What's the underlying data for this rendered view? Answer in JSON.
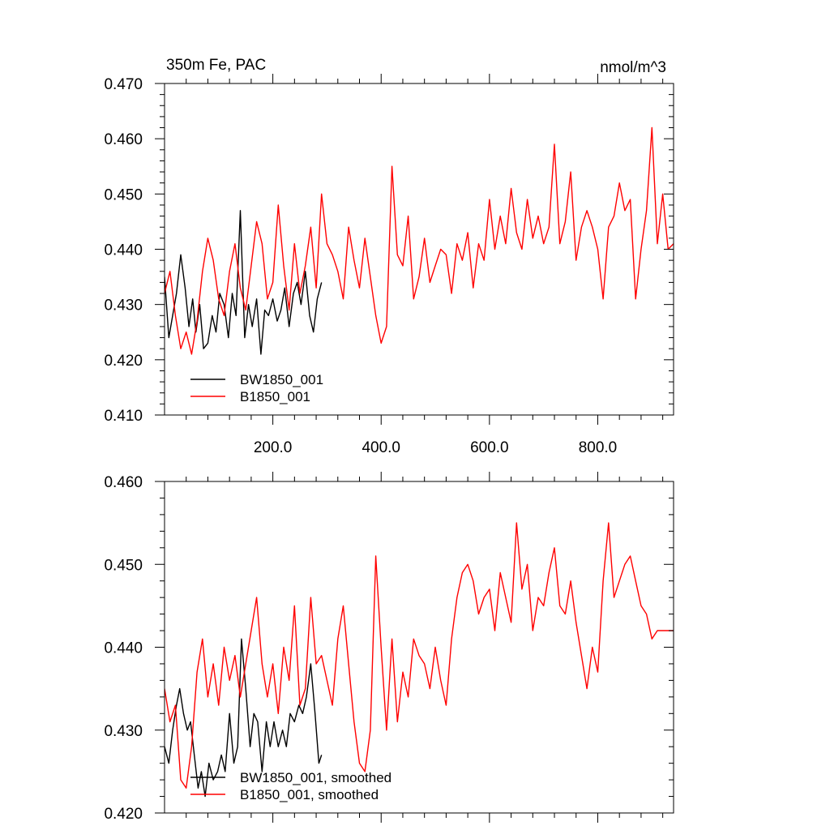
{
  "colors": {
    "bw": "#000000",
    "b": "#ff0000",
    "axis": "#000000"
  },
  "chart_data": [
    {
      "type": "line",
      "title_left": "350m Fe, PAC",
      "title_right": "nmol/m^3",
      "xlim": [
        0,
        940
      ],
      "ylim": [
        0.41,
        0.47
      ],
      "y_ticks": [
        0.41,
        0.42,
        0.43,
        0.44,
        0.45,
        0.46,
        0.47
      ],
      "y_tick_labels": [
        "0.410",
        "0.420",
        "0.430",
        "0.440",
        "0.450",
        "0.460",
        "0.470"
      ],
      "x_ticks": [
        200,
        400,
        600,
        800
      ],
      "x_tick_labels": [
        "200.0",
        "400.0",
        "600.0",
        "800.0"
      ],
      "legend": [
        "BW1850_001",
        "B1850_001"
      ],
      "legend_placement": "bottom-left",
      "series": [
        {
          "name": "BW1850_001",
          "x": [
            0,
            8,
            15,
            22,
            30,
            38,
            45,
            52,
            58,
            65,
            72,
            80,
            88,
            95,
            102,
            110,
            118,
            125,
            132,
            140,
            148,
            155,
            162,
            170,
            178,
            185,
            192,
            200,
            208,
            215,
            222,
            230,
            238,
            245,
            252,
            260,
            268,
            275,
            282,
            290
          ],
          "y": [
            0.435,
            0.424,
            0.428,
            0.432,
            0.439,
            0.433,
            0.426,
            0.431,
            0.425,
            0.43,
            0.422,
            0.423,
            0.428,
            0.425,
            0.432,
            0.43,
            0.424,
            0.432,
            0.428,
            0.447,
            0.424,
            0.43,
            0.426,
            0.431,
            0.421,
            0.429,
            0.428,
            0.431,
            0.427,
            0.429,
            0.433,
            0.426,
            0.432,
            0.434,
            0.43,
            0.436,
            0.428,
            0.425,
            0.431,
            0.434
          ]
        },
        {
          "name": "B1850_001",
          "x": [
            0,
            10,
            20,
            30,
            40,
            50,
            60,
            70,
            80,
            90,
            100,
            110,
            120,
            130,
            140,
            150,
            160,
            170,
            180,
            190,
            200,
            210,
            220,
            230,
            240,
            250,
            260,
            270,
            280,
            290,
            300,
            310,
            320,
            330,
            340,
            350,
            360,
            370,
            380,
            390,
            400,
            410,
            420,
            430,
            440,
            450,
            460,
            470,
            480,
            490,
            500,
            510,
            520,
            530,
            540,
            550,
            560,
            570,
            580,
            590,
            600,
            610,
            620,
            630,
            640,
            650,
            660,
            670,
            680,
            690,
            700,
            710,
            720,
            730,
            740,
            750,
            760,
            770,
            780,
            790,
            800,
            810,
            820,
            830,
            840,
            850,
            860,
            870,
            880,
            890,
            900,
            910,
            920,
            930,
            940
          ],
          "y": [
            0.432,
            0.436,
            0.428,
            0.422,
            0.425,
            0.421,
            0.427,
            0.436,
            0.442,
            0.438,
            0.431,
            0.428,
            0.436,
            0.441,
            0.433,
            0.429,
            0.437,
            0.445,
            0.441,
            0.431,
            0.434,
            0.448,
            0.437,
            0.429,
            0.441,
            0.432,
            0.437,
            0.444,
            0.433,
            0.45,
            0.441,
            0.439,
            0.436,
            0.431,
            0.444,
            0.438,
            0.433,
            0.442,
            0.435,
            0.428,
            0.423,
            0.426,
            0.455,
            0.439,
            0.437,
            0.446,
            0.431,
            0.435,
            0.442,
            0.434,
            0.437,
            0.44,
            0.439,
            0.432,
            0.441,
            0.438,
            0.443,
            0.433,
            0.441,
            0.438,
            0.449,
            0.44,
            0.446,
            0.441,
            0.451,
            0.443,
            0.44,
            0.449,
            0.442,
            0.446,
            0.441,
            0.444,
            0.459,
            0.441,
            0.445,
            0.454,
            0.438,
            0.444,
            0.447,
            0.444,
            0.44,
            0.431,
            0.444,
            0.446,
            0.452,
            0.447,
            0.449,
            0.431,
            0.44,
            0.447,
            0.462,
            0.441,
            0.45,
            0.44,
            0.441
          ]
        }
      ]
    },
    {
      "type": "line",
      "xlim": [
        0,
        940
      ],
      "ylim": [
        0.42,
        0.46
      ],
      "y_ticks": [
        0.42,
        0.43,
        0.44,
        0.45,
        0.46
      ],
      "y_tick_labels": [
        "0.420",
        "0.430",
        "0.440",
        "0.450",
        "0.460"
      ],
      "x_ticks": [
        200,
        400,
        600,
        800
      ],
      "legend": [
        "BW1850_001, smoothed",
        "B1850_001, smoothed"
      ],
      "legend_placement": "bottom-left",
      "series": [
        {
          "name": "BW1850_001, smoothed",
          "x": [
            0,
            8,
            15,
            22,
            28,
            35,
            42,
            48,
            55,
            62,
            68,
            75,
            82,
            90,
            98,
            105,
            112,
            120,
            128,
            135,
            142,
            150,
            158,
            165,
            172,
            180,
            188,
            195,
            202,
            210,
            218,
            225,
            232,
            240,
            248,
            255,
            262,
            270,
            278,
            285,
            290
          ],
          "y": [
            0.428,
            0.426,
            0.43,
            0.433,
            0.435,
            0.432,
            0.43,
            0.431,
            0.427,
            0.423,
            0.425,
            0.422,
            0.426,
            0.424,
            0.425,
            0.427,
            0.425,
            0.432,
            0.426,
            0.428,
            0.441,
            0.435,
            0.428,
            0.432,
            0.431,
            0.425,
            0.431,
            0.428,
            0.431,
            0.428,
            0.43,
            0.428,
            0.432,
            0.431,
            0.433,
            0.432,
            0.434,
            0.438,
            0.432,
            0.426,
            0.427
          ]
        },
        {
          "name": "B1850_001, smoothed",
          "x": [
            0,
            10,
            20,
            30,
            40,
            50,
            60,
            70,
            80,
            90,
            100,
            110,
            120,
            130,
            140,
            150,
            160,
            170,
            180,
            190,
            200,
            210,
            220,
            230,
            240,
            250,
            260,
            270,
            280,
            290,
            300,
            310,
            320,
            330,
            340,
            350,
            360,
            370,
            380,
            390,
            400,
            410,
            420,
            430,
            440,
            450,
            460,
            470,
            480,
            490,
            500,
            510,
            520,
            530,
            540,
            550,
            560,
            570,
            580,
            590,
            600,
            610,
            620,
            630,
            640,
            650,
            660,
            670,
            680,
            690,
            700,
            710,
            720,
            730,
            740,
            750,
            760,
            770,
            780,
            790,
            800,
            810,
            820,
            830,
            840,
            850,
            860,
            870,
            880,
            890,
            900,
            910,
            920,
            930,
            940
          ],
          "y": [
            0.435,
            0.431,
            0.433,
            0.424,
            0.423,
            0.428,
            0.437,
            0.441,
            0.434,
            0.438,
            0.433,
            0.44,
            0.436,
            0.439,
            0.434,
            0.438,
            0.442,
            0.446,
            0.438,
            0.434,
            0.438,
            0.432,
            0.44,
            0.436,
            0.445,
            0.433,
            0.435,
            0.446,
            0.438,
            0.439,
            0.436,
            0.433,
            0.441,
            0.445,
            0.438,
            0.431,
            0.426,
            0.425,
            0.43,
            0.451,
            0.44,
            0.43,
            0.441,
            0.431,
            0.437,
            0.434,
            0.441,
            0.439,
            0.438,
            0.435,
            0.44,
            0.436,
            0.433,
            0.441,
            0.446,
            0.449,
            0.45,
            0.448,
            0.444,
            0.446,
            0.447,
            0.442,
            0.449,
            0.446,
            0.443,
            0.455,
            0.447,
            0.45,
            0.442,
            0.446,
            0.445,
            0.449,
            0.452,
            0.445,
            0.444,
            0.448,
            0.443,
            0.439,
            0.435,
            0.44,
            0.437,
            0.448,
            0.455,
            0.446,
            0.448,
            0.45,
            0.451,
            0.448,
            0.445,
            0.444,
            0.441,
            0.442,
            0.442,
            0.442,
            0.442
          ]
        }
      ]
    }
  ]
}
